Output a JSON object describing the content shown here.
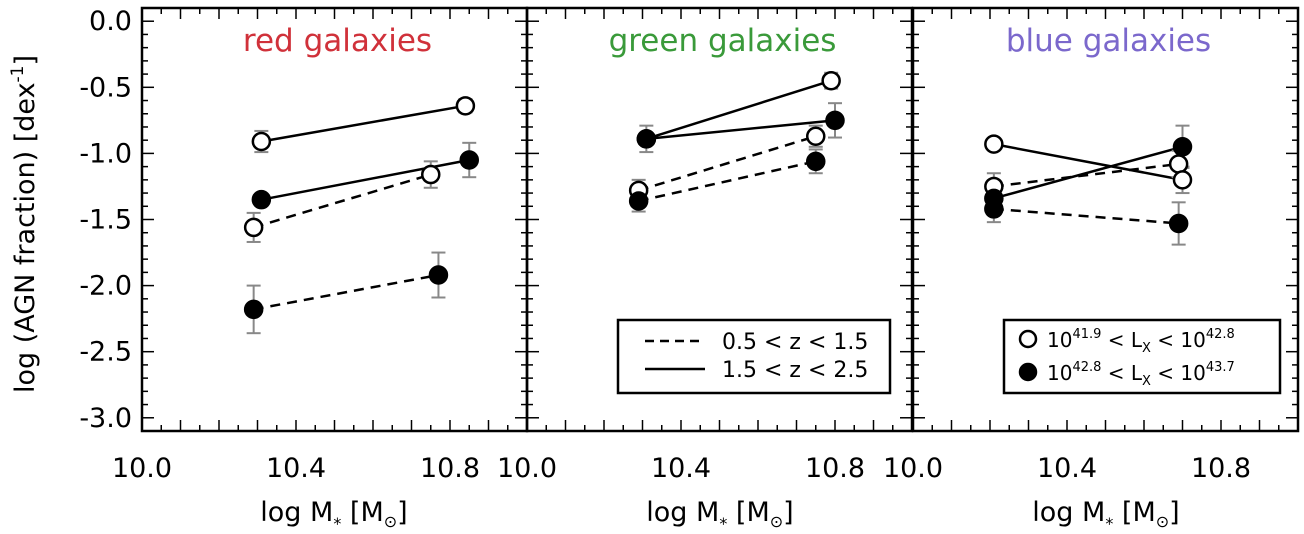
{
  "figure": {
    "ylabel": "log (AGN fraction) [dex",
    "ylabel_sup": "-1",
    "ylabel_tail": "]",
    "xlabel_main": "log M",
    "xlabel_sub": "*",
    "xlabel_unit_open": " [M",
    "xlabel_unit_sub": "⊙",
    "xlabel_unit_close": "]",
    "yticks": [
      {
        "value": 0.0,
        "label": "0.0"
      },
      {
        "value": -0.5,
        "label": "-0.5"
      },
      {
        "value": -1.0,
        "label": "-1.0"
      },
      {
        "value": -1.5,
        "label": "-1.5"
      },
      {
        "value": -2.0,
        "label": "-2.0"
      },
      {
        "value": -2.5,
        "label": "-2.5"
      },
      {
        "value": -3.0,
        "label": "-3.0"
      }
    ],
    "xticks": [
      {
        "value": 10.0,
        "label": "10.0"
      },
      {
        "value": 10.4,
        "label": "10.4"
      },
      {
        "value": 10.8,
        "label": "10.8"
      }
    ],
    "xlim": [
      10.0,
      11.0
    ],
    "ylim": [
      -3.1,
      0.1
    ],
    "colors": {
      "red_title": "#d0313a",
      "green_title": "#3a9a3a",
      "blue_title": "#7b68cc",
      "errorbar": "#888888"
    },
    "legend_z": {
      "dashed": "0.5 < z < 1.5",
      "solid": "1.5 < z < 2.5"
    },
    "legend_lx": {
      "open_base": "10",
      "open_exp1": "41.9",
      "open_mid": " < L",
      "open_sub": "X",
      "open_lt": " < 10",
      "open_exp2": "42.8",
      "filled_base": "10",
      "filled_exp1": "42.8",
      "filled_mid": " < L",
      "filled_sub": "X",
      "filled_lt": " < 10",
      "filled_exp2": "43.7"
    }
  },
  "chart_data": [
    {
      "type": "scatter",
      "title": "red galaxies",
      "xlabel": "log M* [M⊙]",
      "ylabel": "log (AGN fraction) [dex-1]",
      "xlim": [
        10.0,
        11.0
      ],
      "ylim": [
        -3.1,
        0.1
      ],
      "series": [
        {
          "name": "0.5 < z < 1.5, 10^41.9 < LX < 10^42.8",
          "marker": "open",
          "line": "dashed",
          "x": [
            10.29,
            10.75
          ],
          "y": [
            -1.56,
            -1.16
          ],
          "err": [
            0.11,
            0.1
          ]
        },
        {
          "name": "0.5 < z < 1.5, 10^42.8 < LX < 10^43.7",
          "marker": "filled",
          "line": "dashed",
          "x": [
            10.29,
            10.77
          ],
          "y": [
            -2.18,
            -1.92
          ],
          "err": [
            0.18,
            0.17
          ]
        },
        {
          "name": "1.5 < z < 2.5, 10^41.9 < LX < 10^42.8",
          "marker": "open",
          "line": "solid",
          "x": [
            10.31,
            10.84
          ],
          "y": [
            -0.91,
            -0.64
          ],
          "err": [
            0.08,
            0.05
          ]
        },
        {
          "name": "1.5 < z < 2.5, 10^42.8 < LX < 10^43.7",
          "marker": "filled",
          "line": "solid",
          "x": [
            10.31,
            10.85
          ],
          "y": [
            -1.35,
            -1.05
          ],
          "err": [
            0.0,
            0.13
          ]
        }
      ]
    },
    {
      "type": "scatter",
      "title": "green galaxies",
      "xlabel": "log M* [M⊙]",
      "xlim": [
        10.0,
        11.0
      ],
      "ylim": [
        -3.1,
        0.1
      ],
      "series": [
        {
          "name": "0.5 < z < 1.5, 10^41.9 < LX < 10^42.8",
          "marker": "open",
          "line": "dashed",
          "x": [
            10.29,
            10.75
          ],
          "y": [
            -1.28,
            -0.87
          ],
          "err": [
            0.08,
            0.08
          ]
        },
        {
          "name": "0.5 < z < 1.5, 10^42.8 < LX < 10^43.7",
          "marker": "filled",
          "line": "dashed",
          "x": [
            10.29,
            10.75
          ],
          "y": [
            -1.36,
            -1.06
          ],
          "err": [
            0.08,
            0.09
          ]
        },
        {
          "name": "1.5 < z < 2.5, 10^41.9 < LX < 10^42.8",
          "marker": "open",
          "line": "solid",
          "x": [
            10.31,
            10.79
          ],
          "y": [
            -0.89,
            -0.45
          ],
          "err": [
            0.0,
            0.06
          ]
        },
        {
          "name": "1.5 < z < 2.5, 10^42.8 < LX < 10^43.7",
          "marker": "filled",
          "line": "solid",
          "x": [
            10.31,
            10.8
          ],
          "y": [
            -0.89,
            -0.75
          ],
          "err": [
            0.1,
            0.13
          ]
        }
      ]
    },
    {
      "type": "scatter",
      "title": "blue galaxies",
      "xlabel": "log M* [M⊙]",
      "xlim": [
        10.0,
        11.0
      ],
      "ylim": [
        -3.1,
        0.1
      ],
      "series": [
        {
          "name": "0.5 < z < 1.5, 10^41.9 < LX < 10^42.8",
          "marker": "open",
          "line": "dashed",
          "x": [
            10.21,
            10.69
          ],
          "y": [
            -1.25,
            -1.08
          ],
          "err": [
            0.1,
            0.1
          ]
        },
        {
          "name": "0.5 < z < 1.5, 10^42.8 < LX < 10^43.7",
          "marker": "filled",
          "line": "dashed",
          "x": [
            10.21,
            10.69
          ],
          "y": [
            -1.42,
            -1.53
          ],
          "err": [
            0.1,
            0.16
          ]
        },
        {
          "name": "1.5 < z < 2.5, 10^41.9 < LX < 10^42.8",
          "marker": "open",
          "line": "solid",
          "x": [
            10.21,
            10.7
          ],
          "y": [
            -0.93,
            -1.2
          ],
          "err": [
            0.0,
            0.1
          ]
        },
        {
          "name": "1.5 < z < 2.5, 10^42.8 < LX < 10^43.7",
          "marker": "filled",
          "line": "solid",
          "x": [
            10.21,
            10.7
          ],
          "y": [
            -1.34,
            -0.95
          ],
          "err": [
            0.0,
            0.16
          ]
        }
      ]
    }
  ]
}
